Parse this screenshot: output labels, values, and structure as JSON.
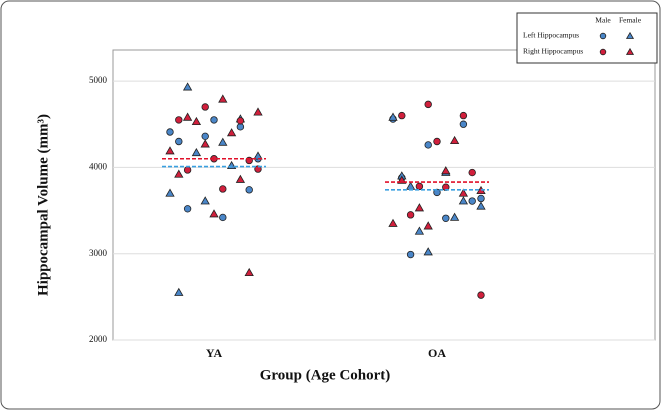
{
  "chart_data": {
    "type": "scatter",
    "x_label": "Group (Age Cohort)",
    "y_label": "Hippocampal Volume (mm³)",
    "categories": [
      "YA",
      "OA"
    ],
    "ylim": [
      2000,
      5360
    ],
    "yticks": [
      2000,
      3000,
      4000,
      5000
    ],
    "grid": true,
    "legend": {
      "columns": [
        "Male",
        "Female"
      ],
      "rows": [
        "Left Hippocampus",
        "Right Hippocampus"
      ]
    },
    "series": [
      {
        "marker": "circle",
        "color": "#4a86c8",
        "values": [
          [
            4410,
            4360,
            4470,
            4300,
            4550,
            3740,
            3520,
            3420,
            4100
          ],
          [
            4560,
            4260,
            4500,
            3880,
            3710,
            3610,
            2990,
            3410,
            3640
          ]
        ]
      },
      {
        "marker": "triangle",
        "color": "#4a86c8",
        "values": [
          [
            4930,
            4290,
            4130,
            4170,
            4020,
            3700,
            3610,
            4560,
            2550
          ],
          [
            3780,
            3940,
            3550,
            3260,
            3420,
            4580,
            3020,
            3610,
            3900
          ]
        ]
      },
      {
        "marker": "circle",
        "color": "#d11f3c",
        "values": [
          [
            4700,
            4540,
            4550,
            4100,
            4080,
            3970,
            3750,
            3980
          ],
          [
            4730,
            4600,
            4600,
            4300,
            3940,
            3450,
            3770,
            2520,
            3780
          ]
        ]
      },
      {
        "marker": "triangle",
        "color": "#d11f3c",
        "values": [
          [
            4790,
            4640,
            4530,
            4400,
            4190,
            4270,
            3860,
            3920,
            3460,
            2780,
            4580
          ],
          [
            3960,
            3730,
            3530,
            4310,
            3350,
            3320,
            3700,
            3850
          ]
        ]
      }
    ],
    "mean_lines": [
      {
        "color": "#3aa0e0",
        "values": [
          4010,
          3740
        ]
      },
      {
        "color": "#e0102a",
        "values": [
          4100,
          3830
        ]
      }
    ]
  }
}
